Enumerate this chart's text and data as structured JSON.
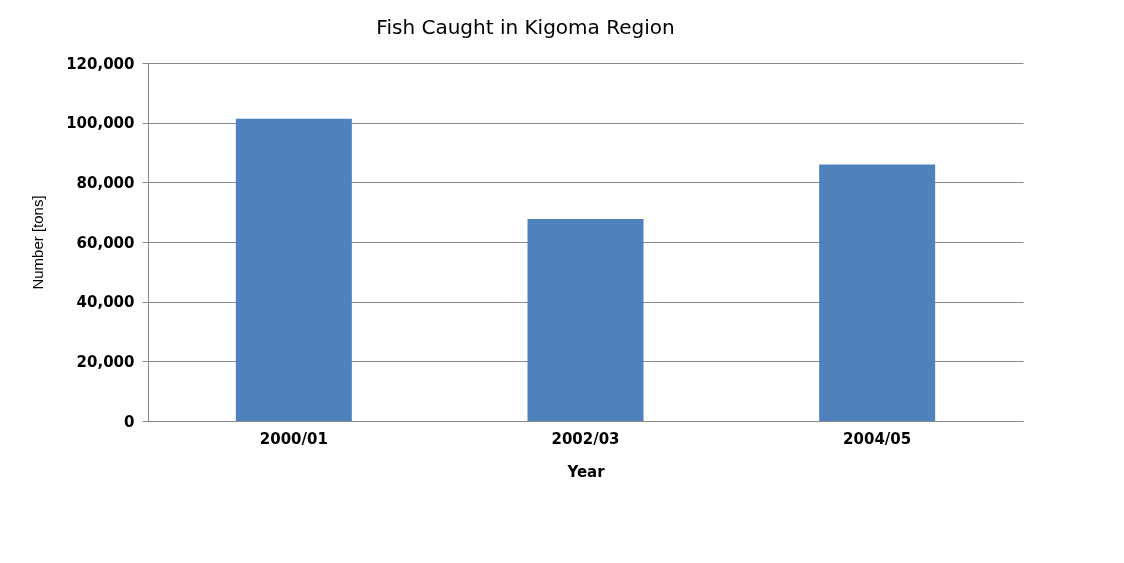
{
  "chart_data": {
    "type": "bar",
    "title": "Fish Caught in Kigoma Region",
    "xlabel": "Year",
    "ylabel": "Number [tons]",
    "categories": [
      "2000/01",
      "2002/03",
      "2004/05"
    ],
    "values": [
      101300,
      67700,
      86000
    ],
    "color": "#4f81bd",
    "ylim": [
      0,
      120000
    ],
    "yticks": [
      0,
      {
        "value": 20000,
        "label": "20,000"
      },
      {
        "value": 40000,
        "label": "40,000"
      },
      {
        "value": 60000,
        "label": "60,000"
      },
      {
        "value": 80000,
        "label": "80,000"
      },
      {
        "value": 100000,
        "label": "100,000"
      },
      {
        "value": 120000,
        "label": "120,000"
      }
    ],
    "grid": "y"
  }
}
